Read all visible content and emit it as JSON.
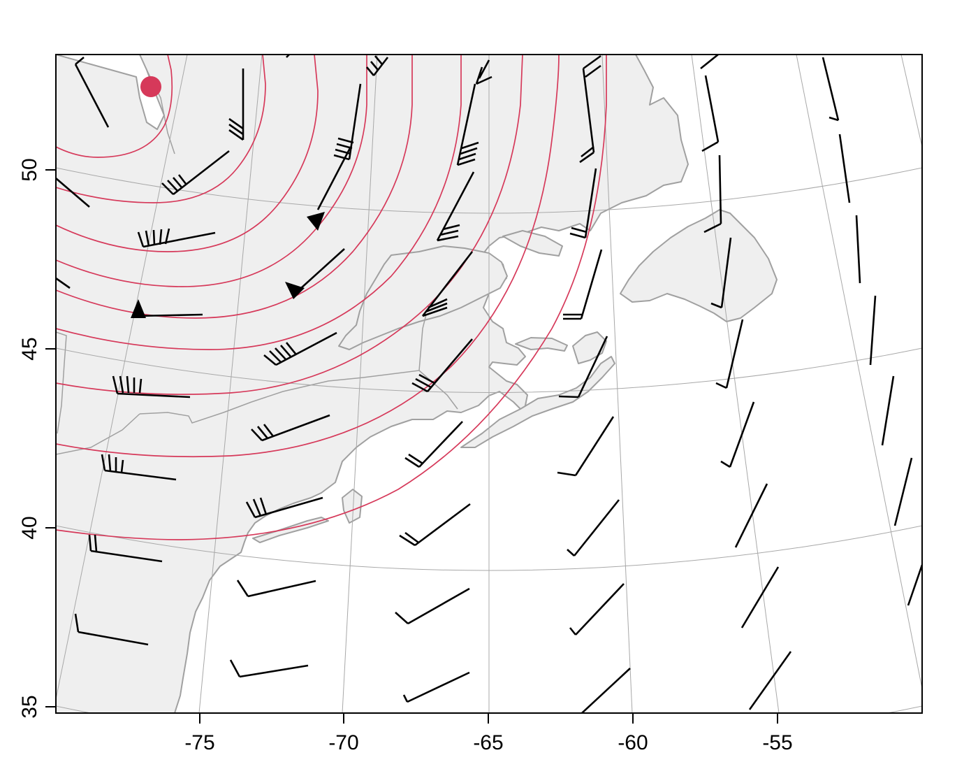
{
  "map": {
    "x_ticks": [
      "-75",
      "-70",
      "-65",
      "-60",
      "-55"
    ],
    "y_ticks": [
      "50",
      "45",
      "40",
      "35"
    ],
    "colors": {
      "land": "#efefef",
      "coast": "#a0a0a0",
      "graticule": "#a8a8a8",
      "contour": "#d6395a",
      "barb": "#000000",
      "center_marker": "#d6395a",
      "frame": "#000000"
    },
    "center_marker": {
      "lon": -76.5,
      "lat": 52.3
    },
    "front": {
      "type": "cold-front",
      "markers": 3
    },
    "contours": 12,
    "wind_barbs": 60
  }
}
